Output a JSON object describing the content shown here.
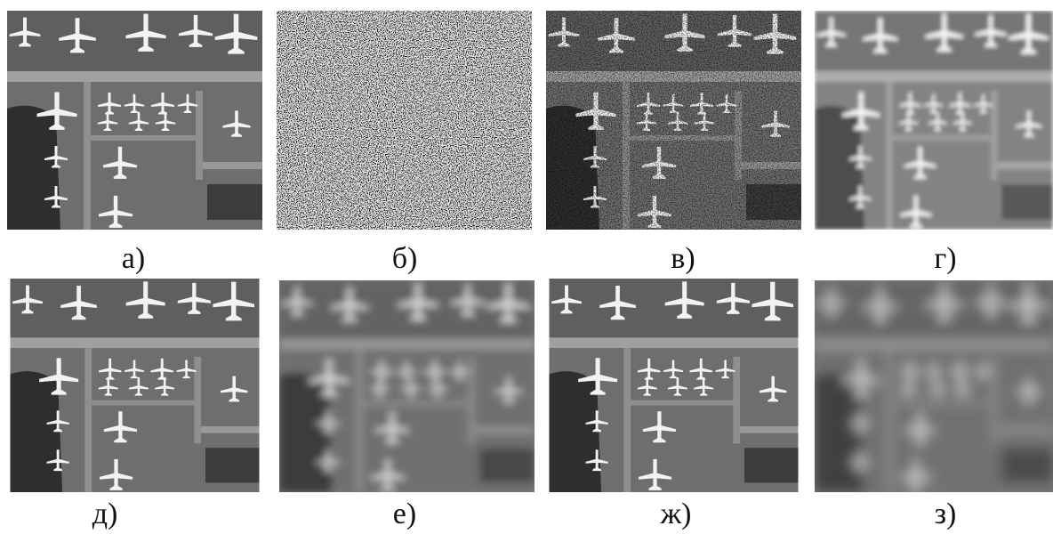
{
  "panels": [
    {
      "label": "а)"
    },
    {
      "label": "б)"
    },
    {
      "label": "в)"
    },
    {
      "label": "г)"
    },
    {
      "label": "д)"
    },
    {
      "label": "е)"
    },
    {
      "label": "ж)"
    },
    {
      "label": "з)"
    }
  ]
}
